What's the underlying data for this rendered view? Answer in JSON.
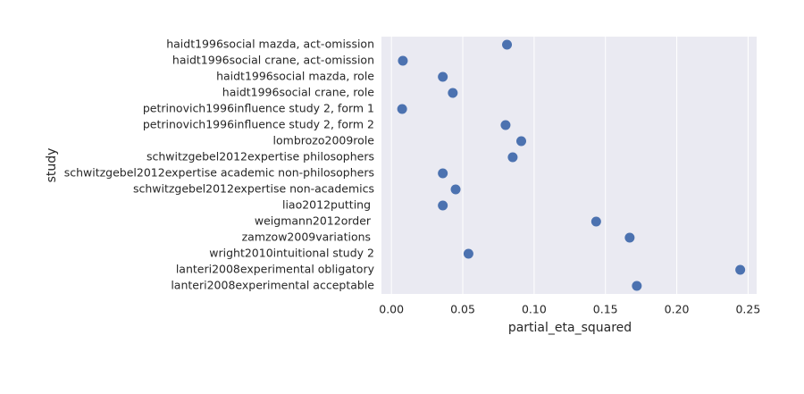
{
  "chart_data": {
    "type": "scatter",
    "orientation": "horizontal",
    "x_label": "partial_eta_squared",
    "y_label": "study",
    "categories": [
      "haidt1996social mazda, act-omission",
      "haidt1996social crane, act-omission",
      "haidt1996social mazda, role",
      "haidt1996social crane, role",
      "petrinovich1996influence study 2, form 1",
      "petrinovich1996influence study 2, form 2",
      "lombrozo2009role",
      "schwitzgebel2012expertise philosophers",
      "schwitzgebel2012expertise academic non-philosophers",
      "schwitzgebel2012expertise non-academics",
      "liao2012putting ",
      "weigmann2012order ",
      "zamzow2009variations ",
      "wright2010intuitional study 2",
      "lanteri2008experimental obligatory",
      "lanteri2008experimental acceptable"
    ],
    "values": [
      0.081,
      0.008,
      0.036,
      0.043,
      0.0075,
      0.08,
      0.091,
      0.085,
      0.036,
      0.045,
      0.036,
      0.1435,
      0.167,
      0.054,
      0.2445,
      0.172
    ],
    "color": "#4c72b0",
    "xlim": [
      -0.007,
      0.256
    ],
    "xticks": [
      {
        "value": 0,
        "label": "0.00"
      },
      {
        "value": 0.05,
        "label": "0.05"
      },
      {
        "value": 0.1,
        "label": "0.10"
      },
      {
        "value": 0.15,
        "label": "0.15"
      },
      {
        "value": 0.2,
        "label": "0.20"
      },
      {
        "value": 0.25,
        "label": "0.25"
      }
    ],
    "grid": true
  }
}
